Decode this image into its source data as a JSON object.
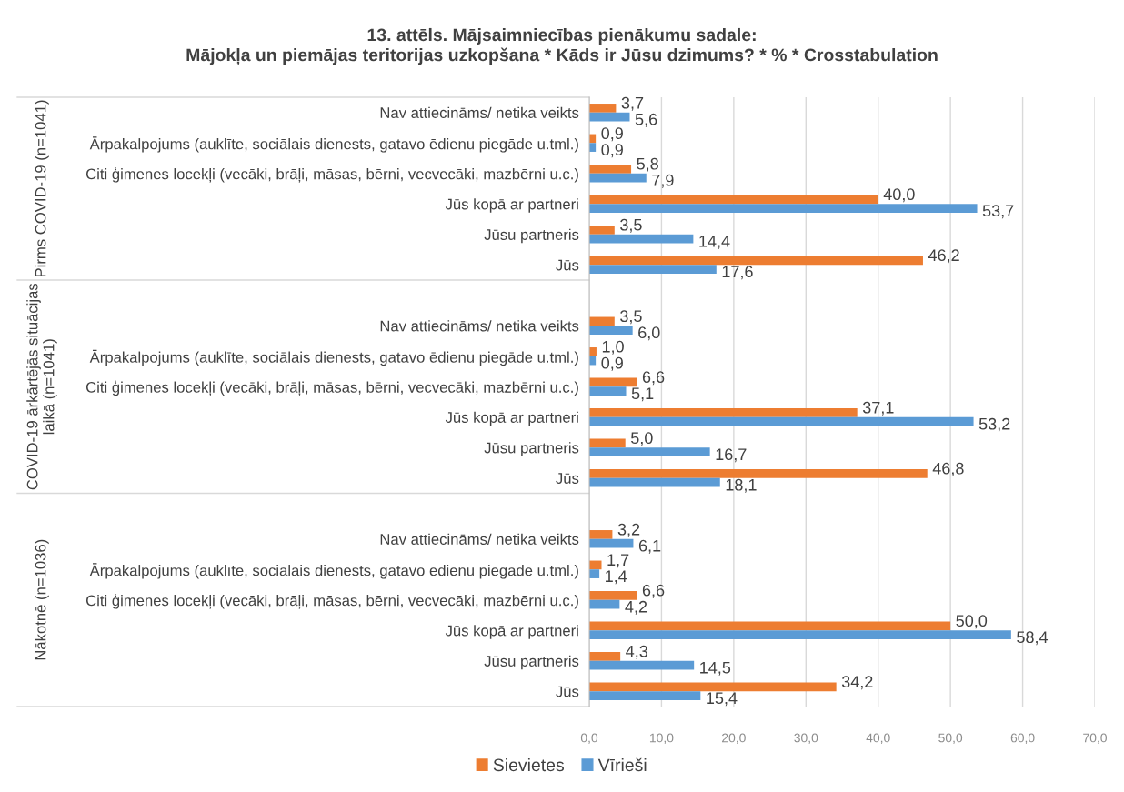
{
  "chart_data": {
    "type": "bar",
    "orientation": "horizontal",
    "title": "13. attēls. Mājsaimniecības pienākumu sadale:",
    "subtitle": "Mājokļa un piemājas teritorijas uzkopšana * Kāds ir Jūsu dzimums? * % * Crosstabulation",
    "categories": [
      "Nav attiecināms/ netika veikts",
      "Ārpakalpojums (auklīte, sociālais dienests, gatavo ēdienu piegāde u.tml.)",
      "Citi ģimenes locekļi (vecāki, brāļi, māsas, bērni, vecvecāki, mazbērni u.c.)",
      "Jūs kopā ar partneri",
      "Jūsu partneris",
      "Jūs",
      "Nav attiecināms/ netika veikts",
      "Ārpakalpojums (auklīte, sociālais dienests, gatavo ēdienu piegāde u.tml.)",
      "Citi ģimenes locekļi (vecāki, brāļi, māsas, bērni, vecvecāki, mazbērni u.c.)",
      "Jūs kopā ar partneri",
      "Jūsu partneris",
      "Jūs",
      "Nav attiecināms/ netika veikts",
      "Ārpakalpojums (auklīte, sociālais dienests, gatavo ēdienu piegāde u.tml.)",
      "Citi ģimenes locekļi (vecāki, brāļi, māsas, bērni, vecvecāki, mazbērni u.c.)",
      "Jūs kopā ar partneri",
      "Jūsu partneris",
      "Jūs"
    ],
    "series": [
      {
        "name": "Sievietes",
        "color": "#ed7d31",
        "values": [
          3.7,
          0.9,
          5.8,
          40.0,
          3.5,
          46.2,
          3.5,
          1.0,
          6.6,
          37.1,
          5.0,
          46.8,
          3.2,
          1.7,
          6.6,
          50.0,
          4.3,
          34.2
        ],
        "value_labels": [
          "3,7",
          "0,9",
          "5,8",
          "40,0",
          "3,5",
          "46,2",
          "3,5",
          "1,0",
          "6,6",
          "37,1",
          "5,0",
          "46,8",
          "3,2",
          "1,7",
          "6,6",
          "50,0",
          "4,3",
          "34,2"
        ]
      },
      {
        "name": "Vīrieši",
        "color": "#5b9bd5",
        "values": [
          5.6,
          0.9,
          7.9,
          53.7,
          14.4,
          17.6,
          6.0,
          0.9,
          5.1,
          53.2,
          16.7,
          18.1,
          6.1,
          1.4,
          4.2,
          58.4,
          14.5,
          15.4
        ],
        "value_labels": [
          "5,6",
          "0,9",
          "7,9",
          "53,7",
          "14,4",
          "17,6",
          "6,0",
          "0,9",
          "5,1",
          "53,2",
          "16,7",
          "18,1",
          "6,1",
          "1,4",
          "4,2",
          "58,4",
          "14,5",
          "15,4"
        ]
      }
    ],
    "xlim": [
      0,
      70
    ],
    "xticks": [
      {
        "value": 0,
        "label": "0,0"
      },
      {
        "value": 10,
        "label": "10,0"
      },
      {
        "value": 20,
        "label": "20,0"
      },
      {
        "value": 30,
        "label": "30,0"
      },
      {
        "value": 40,
        "label": "40,0"
      },
      {
        "value": 50,
        "label": "50,0"
      },
      {
        "value": 60,
        "label": "60,0"
      },
      {
        "value": 70,
        "label": "70,0"
      }
    ],
    "grid": "x",
    "legend": "bottom",
    "annotations": [
      "Pirms COVID-19 (n=1041)",
      "COVID-19 ārkārtējās situācijas\nlaikā (n=1041)",
      "Nākotnē (n=1036)"
    ]
  }
}
